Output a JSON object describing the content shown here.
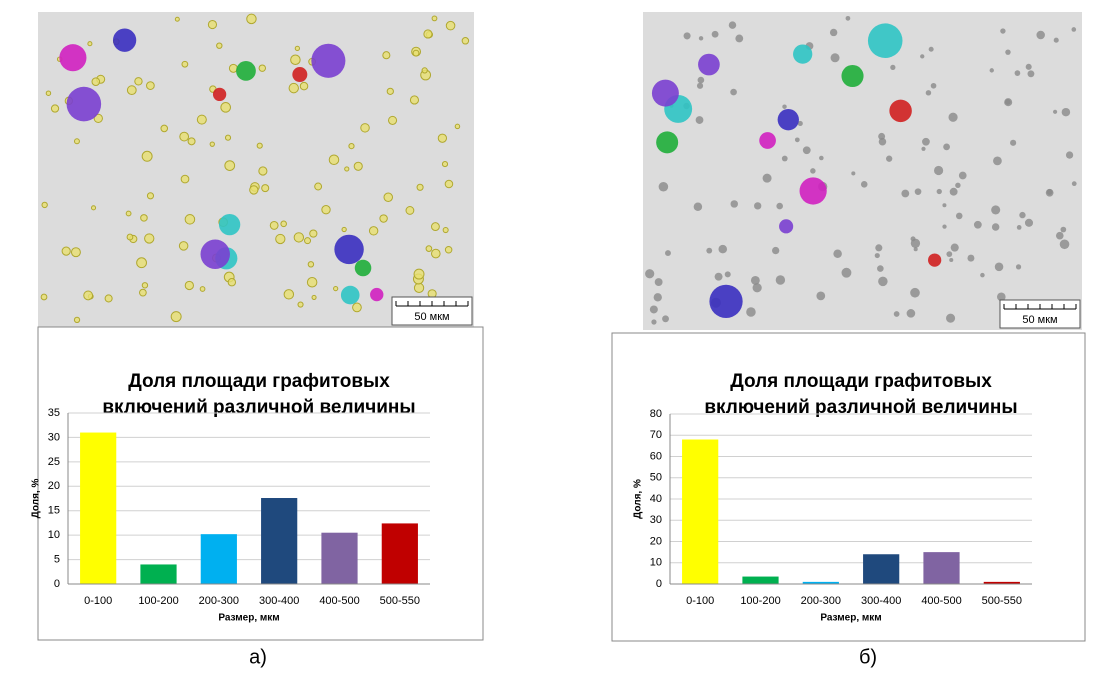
{
  "chart_data": [
    {
      "type": "bar",
      "caption": "а)",
      "scale_label": "50 мкм",
      "title": [
        "Доля площади графитовых",
        "включений различной величины"
      ],
      "x_label": "Размер, мкм",
      "y_label": "Доля, %",
      "categories": [
        "0-100",
        "100-200",
        "200-300",
        "300-400",
        "400-500",
        "500-550"
      ],
      "values": [
        31,
        4,
        10.2,
        17.6,
        10.5,
        12.4
      ],
      "colors": [
        "#ffff00",
        "#00b050",
        "#00b0f0",
        "#1f497d",
        "#8064a2",
        "#c00000"
      ],
      "ylim": [
        0,
        35
      ],
      "yticks": [
        0,
        5,
        10,
        15,
        20,
        25,
        30,
        35
      ],
      "grid": true
    },
    {
      "type": "bar",
      "caption": "б)",
      "scale_label": "50 мкм",
      "title": [
        "Доля площади графитовых",
        "включений различной величины"
      ],
      "x_label": "Размер, мкм",
      "y_label": "Доля, %",
      "categories": [
        "0-100",
        "100-200",
        "200-300",
        "300-400",
        "400-500",
        "500-550"
      ],
      "values": [
        68,
        3.5,
        1,
        14,
        15,
        1
      ],
      "colors": [
        "#ffff00",
        "#00b050",
        "#00b0f0",
        "#1f497d",
        "#8064a2",
        "#c00000"
      ],
      "ylim": [
        0,
        80
      ],
      "yticks": [
        0,
        10,
        20,
        30,
        40,
        50,
        60,
        70,
        80
      ],
      "grid": true
    }
  ]
}
